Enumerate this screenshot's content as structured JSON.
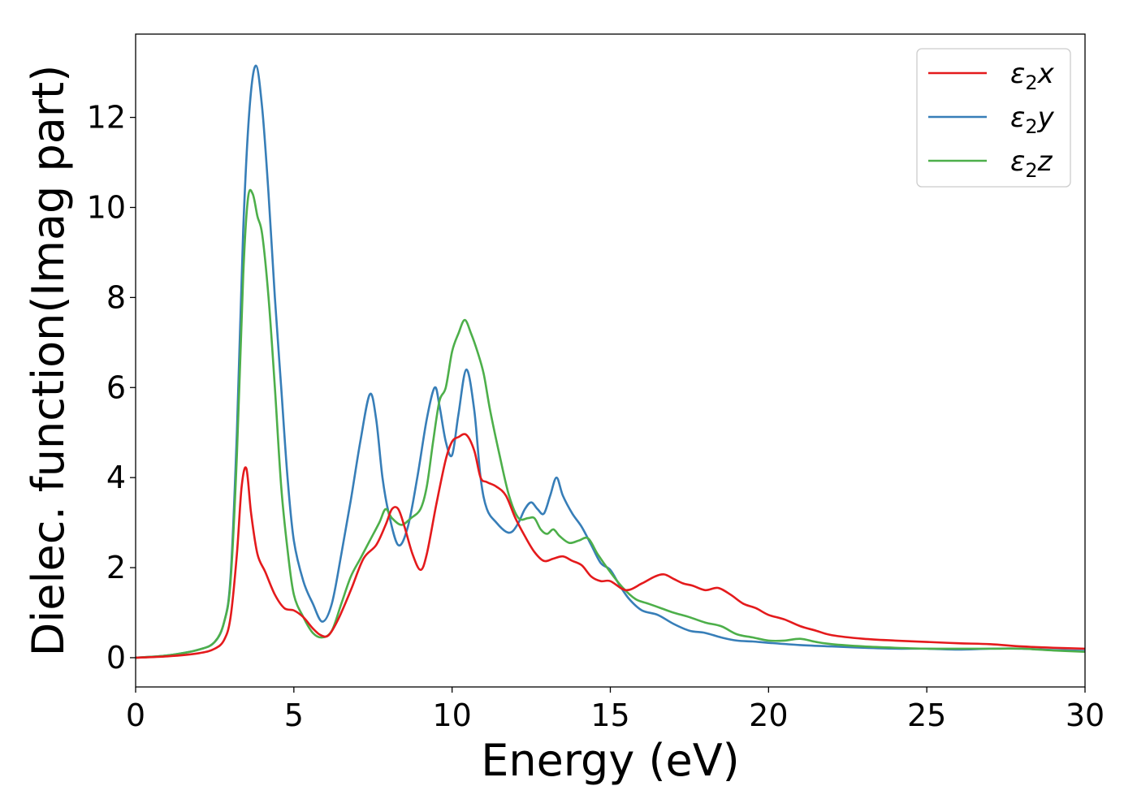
{
  "chart_data": {
    "type": "line",
    "xlabel": "Energy (eV)",
    "ylabel": "Dielec. function(Imag part)",
    "xlim": [
      0,
      30
    ],
    "ylim": [
      -0.65,
      13.85
    ],
    "xticks": [
      0,
      5,
      10,
      15,
      20,
      25,
      30
    ],
    "yticks": [
      0,
      2,
      4,
      6,
      8,
      10,
      12
    ],
    "grid": false,
    "legend_position": "top-right",
    "series": [
      {
        "name": "ε2x",
        "legend": {
          "base": "ε",
          "sub": "2",
          "var": "x"
        },
        "color": "#e41a1c",
        "x": [
          0,
          1,
          2,
          2.5,
          2.8,
          3.0,
          3.2,
          3.35,
          3.5,
          3.65,
          3.85,
          4.1,
          4.4,
          4.7,
          5.0,
          5.3,
          5.6,
          5.85,
          6.1,
          6.4,
          6.8,
          7.2,
          7.6,
          7.9,
          8.1,
          8.3,
          8.5,
          8.75,
          9.0,
          9.2,
          9.5,
          9.8,
          10.0,
          10.2,
          10.45,
          10.7,
          10.9,
          11.1,
          11.4,
          11.7,
          12.0,
          12.3,
          12.6,
          12.9,
          13.2,
          13.5,
          13.8,
          14.1,
          14.4,
          14.7,
          15.0,
          15.5,
          16.0,
          16.4,
          16.7,
          17.0,
          17.3,
          17.6,
          18.0,
          18.4,
          18.8,
          19.2,
          19.6,
          20.0,
          20.5,
          21.0,
          21.5,
          22.0,
          23.0,
          24.0,
          25.0,
          26.0,
          27.0,
          28.0,
          29.0,
          30.0
        ],
        "values": [
          0.0,
          0.03,
          0.1,
          0.2,
          0.4,
          0.9,
          2.3,
          3.8,
          4.2,
          3.2,
          2.3,
          1.9,
          1.4,
          1.1,
          1.05,
          0.9,
          0.65,
          0.5,
          0.5,
          0.85,
          1.5,
          2.2,
          2.5,
          2.95,
          3.3,
          3.3,
          2.9,
          2.3,
          1.95,
          2.3,
          3.4,
          4.4,
          4.8,
          4.9,
          4.95,
          4.6,
          4.0,
          3.9,
          3.8,
          3.6,
          3.1,
          2.7,
          2.35,
          2.15,
          2.2,
          2.25,
          2.15,
          2.05,
          1.8,
          1.7,
          1.7,
          1.5,
          1.65,
          1.8,
          1.85,
          1.75,
          1.65,
          1.6,
          1.5,
          1.55,
          1.4,
          1.2,
          1.1,
          0.95,
          0.85,
          0.7,
          0.6,
          0.5,
          0.42,
          0.38,
          0.35,
          0.32,
          0.3,
          0.25,
          0.22,
          0.2
        ]
      },
      {
        "name": "ε2y",
        "legend": {
          "base": "ε",
          "sub": "2",
          "var": "y"
        },
        "color": "#377eb8",
        "x": [
          0,
          1,
          2,
          2.5,
          2.8,
          3.0,
          3.2,
          3.4,
          3.6,
          3.8,
          4.0,
          4.2,
          4.4,
          4.6,
          4.8,
          5.0,
          5.3,
          5.6,
          5.9,
          6.2,
          6.5,
          6.8,
          7.1,
          7.4,
          7.6,
          7.8,
          8.0,
          8.3,
          8.6,
          8.9,
          9.2,
          9.45,
          9.6,
          9.8,
          10.0,
          10.2,
          10.45,
          10.7,
          10.9,
          11.1,
          11.4,
          11.7,
          11.9,
          12.1,
          12.3,
          12.5,
          12.7,
          12.9,
          13.1,
          13.3,
          13.5,
          13.8,
          14.1,
          14.4,
          14.7,
          15.0,
          15.3,
          15.6,
          16.0,
          16.5,
          17.0,
          17.5,
          18.0,
          18.5,
          19.0,
          19.5,
          20.0,
          21.0,
          22.0,
          23.0,
          24.0,
          25.0,
          26.0,
          27.0,
          28.0,
          29.0,
          30.0
        ],
        "values": [
          0.0,
          0.05,
          0.18,
          0.35,
          0.8,
          1.8,
          5.0,
          9.5,
          12.2,
          13.15,
          12.2,
          10.3,
          8.0,
          6.0,
          4.0,
          2.6,
          1.7,
          1.2,
          0.8,
          1.2,
          2.3,
          3.5,
          4.8,
          5.85,
          5.3,
          4.0,
          3.2,
          2.5,
          2.9,
          4.0,
          5.3,
          6.0,
          5.6,
          4.8,
          4.5,
          5.4,
          6.4,
          5.5,
          4.0,
          3.3,
          3.0,
          2.8,
          2.8,
          3.0,
          3.3,
          3.45,
          3.3,
          3.2,
          3.6,
          4.0,
          3.6,
          3.2,
          2.9,
          2.5,
          2.1,
          1.95,
          1.6,
          1.3,
          1.05,
          0.95,
          0.75,
          0.6,
          0.55,
          0.45,
          0.38,
          0.36,
          0.33,
          0.28,
          0.25,
          0.22,
          0.2,
          0.2,
          0.18,
          0.2,
          0.2,
          0.17,
          0.15
        ]
      },
      {
        "name": "ε2z",
        "legend": {
          "base": "ε",
          "sub": "2",
          "var": "z"
        },
        "color": "#4daf4a",
        "x": [
          0,
          1,
          2,
          2.5,
          2.8,
          3.0,
          3.2,
          3.4,
          3.55,
          3.7,
          3.85,
          4.0,
          4.2,
          4.4,
          4.6,
          4.8,
          5.0,
          5.3,
          5.6,
          5.9,
          6.2,
          6.5,
          6.8,
          7.1,
          7.4,
          7.7,
          7.9,
          8.1,
          8.4,
          8.7,
          9.0,
          9.2,
          9.4,
          9.6,
          9.8,
          10.0,
          10.2,
          10.4,
          10.6,
          10.8,
          11.0,
          11.2,
          11.5,
          11.8,
          12.1,
          12.4,
          12.6,
          12.8,
          13.0,
          13.2,
          13.4,
          13.7,
          14.0,
          14.3,
          14.6,
          15.0,
          15.4,
          15.8,
          16.2,
          16.6,
          17.0,
          17.5,
          18.0,
          18.5,
          19.0,
          19.5,
          20.0,
          20.5,
          21.0,
          21.5,
          22.0,
          23.0,
          24.0,
          25.0,
          26.0,
          27.0,
          28.0,
          29.0,
          30.0
        ],
        "values": [
          0.0,
          0.05,
          0.18,
          0.35,
          0.8,
          1.7,
          4.5,
          8.5,
          10.2,
          10.3,
          9.8,
          9.4,
          8.0,
          6.0,
          3.8,
          2.4,
          1.4,
          0.9,
          0.55,
          0.45,
          0.6,
          1.2,
          1.8,
          2.2,
          2.6,
          3.0,
          3.3,
          3.1,
          2.95,
          3.1,
          3.3,
          3.8,
          4.8,
          5.7,
          6.0,
          6.8,
          7.2,
          7.5,
          7.2,
          6.8,
          6.3,
          5.5,
          4.5,
          3.6,
          3.1,
          3.1,
          3.1,
          2.85,
          2.75,
          2.85,
          2.7,
          2.55,
          2.6,
          2.65,
          2.3,
          1.9,
          1.55,
          1.3,
          1.2,
          1.1,
          1.0,
          0.9,
          0.78,
          0.7,
          0.52,
          0.45,
          0.38,
          0.38,
          0.42,
          0.35,
          0.3,
          0.25,
          0.22,
          0.2,
          0.2,
          0.2,
          0.2,
          0.16,
          0.13
        ]
      }
    ]
  }
}
